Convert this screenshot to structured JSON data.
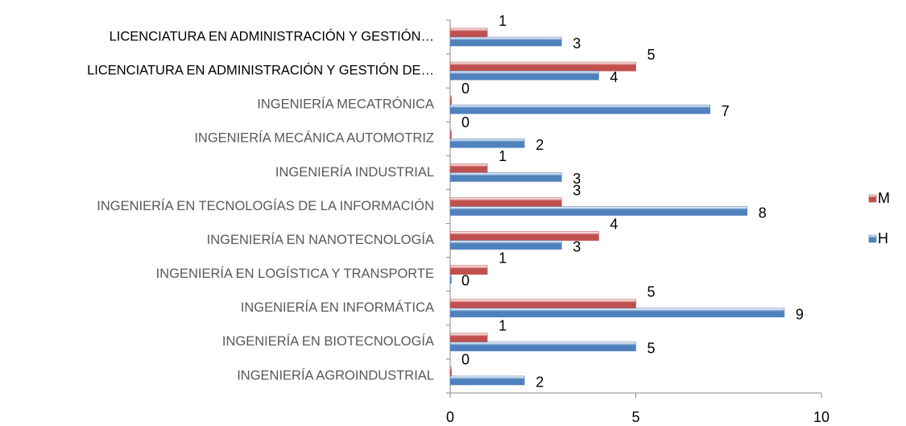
{
  "chart_data": {
    "type": "barh",
    "categories": [
      "LICENCIATURA EN ADMINISTRACIÓN Y GESTIÓN…",
      "LICENCIATURA EN ADMINISTRACIÓN Y GESTIÓN DE…",
      "INGENIERÍA MECATRÓNICA",
      "INGENIERÍA MECÁNICA AUTOMOTRIZ",
      "INGENIERÍA INDUSTRIAL",
      "INGENIERÍA EN TECNOLOGÍAS DE LA INFORMACIÓN",
      "INGENIERÍA EN NANOTECNOLOGÍA",
      "INGENIERÍA EN LOGÍSTICA Y TRANSPORTE",
      "INGENIERÍA EN INFORMÁTICA",
      "INGENIERÍA EN BIOTECNOLOGÍA",
      "INGENIERÍA AGROINDUSTRIAL"
    ],
    "series": [
      {
        "name": "M",
        "color": "#c0504d",
        "values": [
          1,
          5,
          0,
          0,
          1,
          3,
          4,
          1,
          5,
          1,
          0
        ]
      },
      {
        "name": "H",
        "color": "#4f81bd",
        "values": [
          3,
          4,
          7,
          2,
          3,
          8,
          3,
          0,
          9,
          5,
          2
        ]
      }
    ],
    "xlim": [
      0,
      10
    ],
    "xticks": [
      0,
      5,
      10
    ],
    "legend": "right"
  }
}
